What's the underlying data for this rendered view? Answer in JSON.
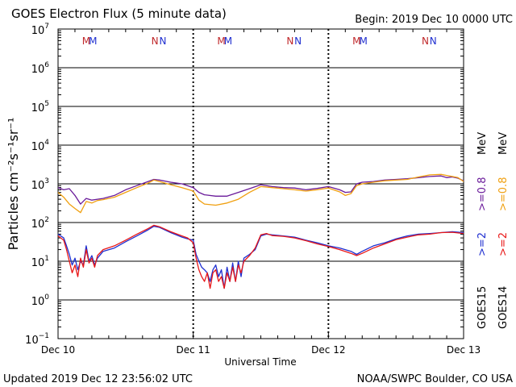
{
  "title": "GOES Electron Flux (5 minute data)",
  "begin_text": "Begin: 2019 Dec 10 0000 UTC",
  "updated_text": "Updated 2019 Dec 12 23:56:02 UTC",
  "credit_text": "NOAA/SWPC Boulder, CO USA",
  "colors": {
    "goes15_08": "#6a1b9a",
    "goes14_08": "#f0a010",
    "goes15_2": "#1f2fd0",
    "goes14_2": "#e81818",
    "grid": "#000000",
    "m_marker": "#c0282a",
    "m_marker2": "#1f2fd0"
  },
  "right_labels": {
    "goes15": "GOES15",
    "goes14": "GOES14",
    "g15_2": ">=2",
    "g14_2": ">=2",
    "g15_08": ">=0.8",
    "g14_08": ">=0.8",
    "mev1": "MeV",
    "mev2": "MeV"
  },
  "top_markers": {
    "M": "M",
    "N": "N"
  },
  "chart_data": {
    "type": "line",
    "title": "GOES Electron Flux (5 minute data)",
    "xlabel": "Universal Time",
    "ylabel": "Particles cm⁻²s⁻¹sr⁻¹",
    "y_scale": "log",
    "ylim": [
      0.1,
      10000000
    ],
    "y_ticks": [
      {
        "base": "10",
        "exp": "7"
      },
      {
        "base": "10",
        "exp": "6"
      },
      {
        "base": "10",
        "exp": "5"
      },
      {
        "base": "10",
        "exp": "4"
      },
      {
        "base": "10",
        "exp": "3"
      },
      {
        "base": "10",
        "exp": "2"
      },
      {
        "base": "10",
        "exp": "1"
      },
      {
        "base": "10",
        "exp": "0"
      },
      {
        "base": "10",
        "exp": "−1"
      }
    ],
    "x_unit": "hours since 2019 Dec 10 0000 UTC",
    "xlim": [
      0,
      72
    ],
    "x_ticks": [
      "Dec 10",
      "Dec 11",
      "Dec 12",
      "Dec 13"
    ],
    "threshold": 1000,
    "series": [
      {
        "name": "GOES15 >=0.8 MeV",
        "x": [
          0,
          1,
          2,
          3,
          4,
          5,
          6,
          7,
          8,
          10,
          12,
          14,
          16,
          17,
          18,
          20,
          22,
          24,
          25,
          26,
          28,
          30,
          32,
          34,
          36,
          38,
          40,
          42,
          44,
          46,
          48,
          50,
          51,
          52,
          53,
          54,
          56,
          58,
          60,
          62,
          64,
          66,
          68,
          69,
          70,
          71,
          72
        ],
        "y": [
          800,
          700,
          750,
          500,
          300,
          420,
          380,
          400,
          420,
          500,
          700,
          900,
          1150,
          1300,
          1250,
          1100,
          1000,
          800,
          600,
          520,
          480,
          480,
          600,
          750,
          950,
          850,
          800,
          780,
          700,
          760,
          850,
          700,
          600,
          620,
          1000,
          1100,
          1150,
          1250,
          1300,
          1350,
          1450,
          1550,
          1600,
          1450,
          1500,
          1400,
          1200
        ]
      },
      {
        "name": "GOES14 >=0.8 MeV",
        "x": [
          0,
          1,
          2,
          3,
          4,
          5,
          6,
          7,
          8,
          10,
          12,
          14,
          16,
          17,
          18,
          20,
          22,
          24,
          25,
          26,
          28,
          30,
          32,
          34,
          36,
          38,
          40,
          42,
          44,
          46,
          48,
          50,
          51,
          52,
          53,
          54,
          56,
          58,
          60,
          62,
          64,
          66,
          68,
          69,
          70,
          71,
          72
        ],
        "y": [
          600,
          450,
          300,
          230,
          180,
          350,
          320,
          370,
          390,
          450,
          600,
          800,
          1050,
          1250,
          1150,
          950,
          800,
          650,
          380,
          300,
          280,
          320,
          400,
          600,
          850,
          800,
          750,
          700,
          650,
          700,
          780,
          620,
          500,
          560,
          900,
          1000,
          1100,
          1200,
          1250,
          1300,
          1500,
          1700,
          1750,
          1650,
          1550,
          1450,
          1150
        ]
      },
      {
        "name": "GOES15 >=2 MeV",
        "x": [
          0,
          1,
          1.5,
          2,
          2.5,
          3,
          3.5,
          4,
          4.5,
          5,
          5.5,
          6,
          6.5,
          7,
          8,
          10,
          12,
          14,
          16,
          17,
          18,
          20,
          22,
          23,
          24,
          24.5,
          25,
          25.5,
          26,
          26.5,
          27,
          27.5,
          28,
          28.5,
          29,
          29.5,
          30,
          30.5,
          31,
          31.5,
          32,
          32.5,
          33,
          34,
          35,
          36,
          37,
          38,
          40,
          42,
          44,
          46,
          48,
          50,
          52,
          53,
          54,
          56,
          58,
          60,
          62,
          64,
          66,
          68,
          70,
          72
        ],
        "y": [
          50,
          40,
          25,
          15,
          8,
          12,
          6,
          10,
          8,
          25,
          10,
          14,
          8,
          12,
          18,
          22,
          32,
          45,
          65,
          80,
          75,
          55,
          42,
          38,
          35,
          15,
          10,
          7,
          6,
          5,
          3,
          6,
          8,
          4,
          6,
          2,
          7,
          3,
          9,
          3,
          10,
          4,
          12,
          15,
          20,
          45,
          50,
          48,
          45,
          42,
          35,
          30,
          25,
          22,
          18,
          15,
          18,
          25,
          30,
          38,
          45,
          50,
          52,
          55,
          58,
          55
        ]
      },
      {
        "name": "GOES14 >=2 MeV",
        "x": [
          0,
          1,
          1.5,
          2,
          2.5,
          3,
          3.5,
          4,
          4.5,
          5,
          5.5,
          6,
          6.5,
          7,
          8,
          10,
          12,
          14,
          16,
          17,
          18,
          20,
          22,
          23,
          24,
          24.5,
          25,
          25.5,
          26,
          26.5,
          27,
          27.5,
          28,
          28.5,
          29,
          29.5,
          30,
          30.5,
          31,
          31.5,
          32,
          32.5,
          33,
          34,
          35,
          36,
          37,
          38,
          40,
          42,
          44,
          46,
          48,
          50,
          52,
          53,
          54,
          56,
          58,
          60,
          62,
          64,
          66,
          68,
          70,
          72
        ],
        "y": [
          45,
          35,
          20,
          10,
          5,
          8,
          4,
          12,
          7,
          20,
          9,
          12,
          7,
          14,
          20,
          25,
          35,
          50,
          70,
          85,
          78,
          58,
          45,
          40,
          30,
          12,
          6,
          4,
          3,
          5,
          2,
          5,
          6,
          3,
          4,
          2,
          5,
          3,
          7,
          3,
          8,
          5,
          10,
          14,
          22,
          48,
          52,
          46,
          44,
          40,
          34,
          28,
          24,
          20,
          16,
          14,
          16,
          22,
          28,
          36,
          42,
          48,
          50,
          55,
          56,
          52
        ]
      }
    ]
  }
}
